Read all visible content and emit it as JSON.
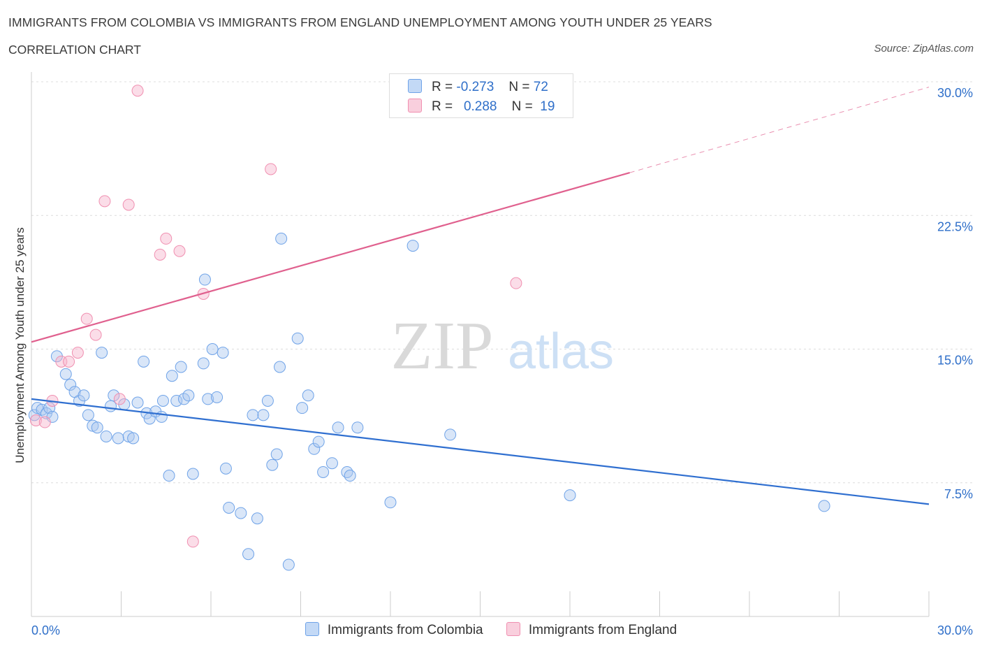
{
  "header": {
    "title": "IMMIGRANTS FROM COLOMBIA VS IMMIGRANTS FROM ENGLAND UNEMPLOYMENT AMONG YOUTH UNDER 25 YEARS",
    "subtitle": "CORRELATION CHART",
    "source": "Source: ZipAtlas.com"
  },
  "watermark": {
    "zip": "ZIP",
    "atlas": "atlas"
  },
  "legend": {
    "rows": [
      {
        "r_label": "R =",
        "r_value": "-0.273",
        "n_label": "N =",
        "n_value": "72",
        "color": "#6fa3e8"
      },
      {
        "r_label": "R =",
        "r_value": "0.288",
        "n_label": "N =",
        "n_value": "19",
        "color": "#f08fb0"
      }
    ]
  },
  "bottom_legend": {
    "colombia": "Immigrants from Colombia",
    "england": "Immigrants from England"
  },
  "chart_data": {
    "type": "scatter",
    "title": "IMMIGRANTS FROM COLOMBIA VS IMMIGRANTS FROM ENGLAND UNEMPLOYMENT AMONG YOUTH UNDER 25 YEARS",
    "subtitle": "CORRELATION CHART",
    "xlabel": "",
    "ylabel": "Unemployment Among Youth under 25 years",
    "xlim": [
      0,
      30
    ],
    "ylim": [
      0,
      30
    ],
    "x_tick_labels": [
      "0.0%",
      "30.0%"
    ],
    "y_ticks": [
      7.5,
      15.0,
      22.5,
      30.0
    ],
    "y_tick_labels": [
      "7.5%",
      "15.0%",
      "22.5%",
      "30.0%"
    ],
    "grid": "horizontal dashed",
    "series": [
      {
        "name": "Immigrants from Colombia",
        "color": "#6fa3e8",
        "line_color": "#2f6fd0",
        "trend": {
          "x": [
            0,
            30
          ],
          "y": [
            12.2,
            6.3
          ]
        },
        "points": [
          [
            0.1,
            11.3
          ],
          [
            0.2,
            11.7
          ],
          [
            0.35,
            11.6
          ],
          [
            0.5,
            11.4
          ],
          [
            0.6,
            11.7
          ],
          [
            0.7,
            11.2
          ],
          [
            0.85,
            14.6
          ],
          [
            1.15,
            13.6
          ],
          [
            1.3,
            13.0
          ],
          [
            1.45,
            12.6
          ],
          [
            1.6,
            12.1
          ],
          [
            1.75,
            12.4
          ],
          [
            1.9,
            11.3
          ],
          [
            2.05,
            10.7
          ],
          [
            2.2,
            10.6
          ],
          [
            2.35,
            14.8
          ],
          [
            2.5,
            10.1
          ],
          [
            2.65,
            11.8
          ],
          [
            2.75,
            12.4
          ],
          [
            2.9,
            10.0
          ],
          [
            3.1,
            11.9
          ],
          [
            3.25,
            10.1
          ],
          [
            3.4,
            10.0
          ],
          [
            3.55,
            12.0
          ],
          [
            3.75,
            14.3
          ],
          [
            3.85,
            11.4
          ],
          [
            3.95,
            11.1
          ],
          [
            4.15,
            11.5
          ],
          [
            4.35,
            11.2
          ],
          [
            4.4,
            12.1
          ],
          [
            4.6,
            7.9
          ],
          [
            4.7,
            13.5
          ],
          [
            4.85,
            12.1
          ],
          [
            5.0,
            14.0
          ],
          [
            5.1,
            12.2
          ],
          [
            5.25,
            12.4
          ],
          [
            5.4,
            8.0
          ],
          [
            5.75,
            14.2
          ],
          [
            5.8,
            18.9
          ],
          [
            5.9,
            12.2
          ],
          [
            6.05,
            15.0
          ],
          [
            6.2,
            12.3
          ],
          [
            6.4,
            14.8
          ],
          [
            6.5,
            8.3
          ],
          [
            6.6,
            6.1
          ],
          [
            7.0,
            5.8
          ],
          [
            7.25,
            3.5
          ],
          [
            7.4,
            11.3
          ],
          [
            7.55,
            5.5
          ],
          [
            7.75,
            11.3
          ],
          [
            7.9,
            12.1
          ],
          [
            8.05,
            8.5
          ],
          [
            8.2,
            9.1
          ],
          [
            8.3,
            14.0
          ],
          [
            8.35,
            21.2
          ],
          [
            8.6,
            2.9
          ],
          [
            8.9,
            15.6
          ],
          [
            9.05,
            11.7
          ],
          [
            9.25,
            12.4
          ],
          [
            9.45,
            9.4
          ],
          [
            9.6,
            9.8
          ],
          [
            9.75,
            8.1
          ],
          [
            10.05,
            8.6
          ],
          [
            10.25,
            10.6
          ],
          [
            10.55,
            8.1
          ],
          [
            10.65,
            7.9
          ],
          [
            10.9,
            10.6
          ],
          [
            12.0,
            6.4
          ],
          [
            12.75,
            20.8
          ],
          [
            14.0,
            10.2
          ],
          [
            18.0,
            6.8
          ],
          [
            26.5,
            6.2
          ]
        ]
      },
      {
        "name": "Immigrants from England",
        "color": "#f08fb0",
        "line_color": "#e0608e",
        "trend": {
          "x": [
            0,
            20
          ],
          "y": [
            15.4,
            24.9
          ]
        },
        "trend_dashed": {
          "x": [
            20,
            30
          ],
          "y": [
            24.9,
            29.7
          ]
        },
        "points": [
          [
            0.15,
            11.0
          ],
          [
            0.45,
            10.9
          ],
          [
            0.7,
            12.1
          ],
          [
            1.0,
            14.3
          ],
          [
            1.25,
            14.3
          ],
          [
            1.55,
            14.8
          ],
          [
            1.85,
            16.7
          ],
          [
            2.15,
            15.8
          ],
          [
            2.45,
            23.3
          ],
          [
            2.95,
            12.2
          ],
          [
            3.25,
            23.1
          ],
          [
            3.55,
            29.5
          ],
          [
            4.3,
            20.3
          ],
          [
            4.5,
            21.2
          ],
          [
            4.95,
            20.5
          ],
          [
            5.4,
            4.2
          ],
          [
            5.75,
            18.1
          ],
          [
            8.0,
            25.1
          ],
          [
            16.2,
            18.7
          ]
        ]
      }
    ]
  }
}
